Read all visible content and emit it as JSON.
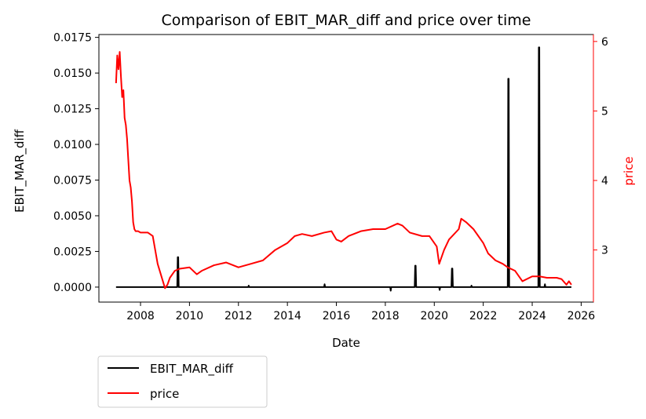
{
  "chart_data": {
    "type": "line",
    "title": "Comparison of EBIT_MAR_diff and price over time",
    "xlabel": "Date",
    "ylabel_left": "EBIT_MAR_diff",
    "ylabel_right": "price",
    "xlim": [
      2006.3,
      2026.5
    ],
    "ylim_left": [
      -0.00105,
      0.0177
    ],
    "ylim_right": [
      2.25,
      6.1
    ],
    "x_ticks": [
      2008,
      2010,
      2012,
      2014,
      2016,
      2018,
      2020,
      2022,
      2024,
      2026
    ],
    "y_left_ticks": [
      "0.0000",
      "0.0025",
      "0.0050",
      "0.0075",
      "0.0100",
      "0.0125",
      "0.0150",
      "0.0175"
    ],
    "y_right_ticks": [
      3,
      4,
      5,
      6
    ],
    "grid": false,
    "legend_position": "below-left",
    "colors": {
      "left_axis": "#000000",
      "right_axis": "#ff0000"
    },
    "series": [
      {
        "name": "EBIT_MAR_diff",
        "axis": "left",
        "color": "#000000",
        "x": [
          2007.0,
          2009.5,
          2009.52,
          2009.54,
          2009.56,
          2010.0,
          2011.0,
          2012.4,
          2012.42,
          2012.44,
          2013.6,
          2014.5,
          2015.5,
          2015.52,
          2015.54,
          2016.5,
          2017.0,
          2018.0,
          2018.2,
          2018.22,
          2018.24,
          2018.8,
          2019.0,
          2019.2,
          2019.22,
          2019.24,
          2019.26,
          2019.6,
          2020.0,
          2020.2,
          2020.22,
          2020.24,
          2020.7,
          2020.72,
          2020.74,
          2020.76,
          2021.5,
          2021.52,
          2021.54,
          2022.0,
          2022.9,
          2023.0,
          2023.02,
          2023.04,
          2023.06,
          2023.5,
          2024.2,
          2024.25,
          2024.27,
          2024.29,
          2024.31,
          2024.5,
          2024.52,
          2024.54,
          2025.6
        ],
        "y": [
          0.0,
          0.0,
          0.0021,
          0.0021,
          0.0,
          0.0,
          0.0,
          0.0,
          0.0001,
          0.0,
          0.0,
          0.0,
          0.0,
          0.0002,
          0.0,
          0.0,
          0.0,
          0.0,
          0.0,
          -0.00025,
          0.0,
          0.0,
          0.0,
          0.0,
          0.0015,
          0.0015,
          0.0,
          0.0,
          0.0,
          0.0,
          -0.0002,
          0.0,
          0.0,
          0.0013,
          0.0013,
          0.0,
          0.0,
          0.0001,
          0.0,
          0.0,
          0.0,
          0.0,
          0.0146,
          0.0146,
          0.0,
          0.0,
          0.0,
          0.0,
          0.0168,
          0.0168,
          0.0,
          0.0,
          0.0002,
          0.0,
          0.0
        ]
      },
      {
        "name": "price",
        "axis": "right",
        "color": "#ff0000",
        "x": [
          2007.0,
          2007.05,
          2007.1,
          2007.15,
          2007.2,
          2007.25,
          2007.3,
          2007.35,
          2007.4,
          2007.45,
          2007.5,
          2007.55,
          2007.6,
          2007.65,
          2007.7,
          2007.75,
          2007.8,
          2007.85,
          2007.9,
          2008.0,
          2008.3,
          2008.5,
          2008.6,
          2008.7,
          2009.0,
          2009.1,
          2009.2,
          2009.4,
          2009.6,
          2010.0,
          2010.3,
          2010.5,
          2011.0,
          2011.5,
          2012.0,
          2012.5,
          2013.0,
          2013.5,
          2014.0,
          2014.3,
          2014.6,
          2015.0,
          2015.5,
          2015.8,
          2016.0,
          2016.2,
          2016.5,
          2017.0,
          2017.5,
          2018.0,
          2018.5,
          2018.7,
          2019.0,
          2019.5,
          2019.8,
          2020.1,
          2020.2,
          2020.4,
          2020.6,
          2021.0,
          2021.1,
          2021.3,
          2021.6,
          2022.0,
          2022.2,
          2022.5,
          2022.8,
          2023.0,
          2023.3,
          2023.6,
          2024.0,
          2024.3,
          2024.6,
          2025.0,
          2025.2,
          2025.4,
          2025.5,
          2025.6
        ],
        "y": [
          5.4,
          5.8,
          5.6,
          5.85,
          5.5,
          5.2,
          5.3,
          4.9,
          4.8,
          4.6,
          4.3,
          4.0,
          3.9,
          3.7,
          3.4,
          3.3,
          3.27,
          3.27,
          3.27,
          3.25,
          3.25,
          3.2,
          3.0,
          2.8,
          2.45,
          2.5,
          2.6,
          2.7,
          2.73,
          2.75,
          2.65,
          2.7,
          2.78,
          2.82,
          2.75,
          2.8,
          2.85,
          3.0,
          3.1,
          3.2,
          3.23,
          3.2,
          3.25,
          3.27,
          3.15,
          3.12,
          3.2,
          3.27,
          3.3,
          3.3,
          3.38,
          3.35,
          3.25,
          3.2,
          3.2,
          3.05,
          2.8,
          3.0,
          3.15,
          3.3,
          3.45,
          3.4,
          3.3,
          3.1,
          2.95,
          2.85,
          2.8,
          2.75,
          2.7,
          2.55,
          2.62,
          2.62,
          2.6,
          2.6,
          2.58,
          2.5,
          2.55,
          2.5
        ]
      }
    ]
  }
}
